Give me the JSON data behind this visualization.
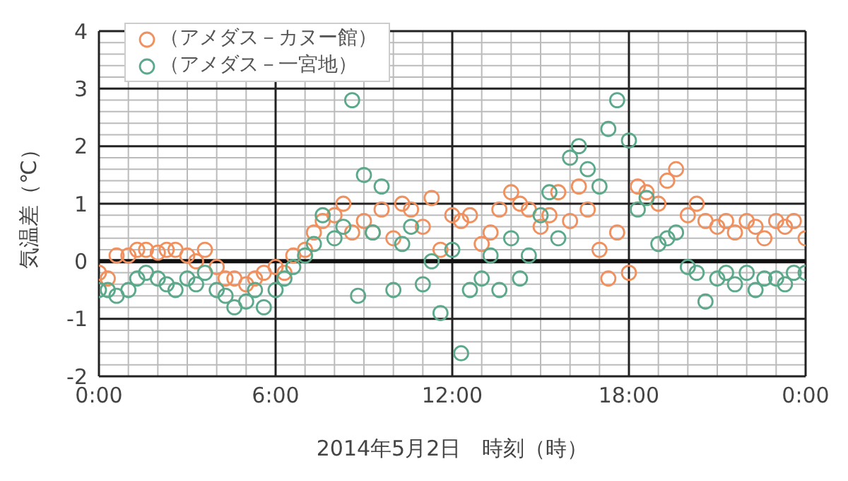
{
  "chart_data": {
    "type": "scatter",
    "xlabel": "2014年5月2日　時刻（時）",
    "ylabel": "気温差（℃）",
    "xlim": [
      0,
      24
    ],
    "xticks": [
      {
        "value": 0,
        "label": "0:00"
      },
      {
        "value": 6,
        "label": "6:00"
      },
      {
        "value": 12,
        "label": "12:00"
      },
      {
        "value": 18,
        "label": "18:00"
      },
      {
        "value": 24,
        "label": "0:00"
      }
    ],
    "ylim": [
      -2,
      4
    ],
    "yticks": [
      -2,
      -1,
      0,
      1,
      2,
      3,
      4
    ],
    "grid": true,
    "legend": "top left",
    "marker": "circle",
    "series": [
      {
        "name": "（アメダス－カヌー館）",
        "color": "#f0905e",
        "x": [
          0,
          0.3,
          0.6,
          1,
          1.3,
          1.6,
          2,
          2.3,
          2.6,
          3,
          3.3,
          3.6,
          4,
          4.3,
          4.6,
          5,
          5.3,
          5.6,
          6,
          6.3,
          6.6,
          7,
          7.3,
          7.6,
          8,
          8.3,
          8.6,
          9,
          9.3,
          9.6,
          10,
          10.3,
          10.6,
          11,
          11.3,
          11.6,
          12,
          12.3,
          12.6,
          13,
          13.3,
          13.6,
          14,
          14.3,
          14.6,
          15,
          15.3,
          15.6,
          16,
          16.3,
          16.6,
          17,
          17.3,
          17.6,
          18,
          18.3,
          18.6,
          19,
          19.3,
          19.6,
          20,
          20.3,
          20.6,
          21,
          21.3,
          21.6,
          22,
          22.3,
          22.6,
          23,
          23.3,
          23.6,
          24
        ],
        "values": [
          -0.2,
          -0.3,
          0.1,
          0.1,
          0.2,
          0.2,
          0.15,
          0.2,
          0.2,
          0.1,
          0,
          0.2,
          -0.1,
          -0.3,
          -0.3,
          -0.4,
          -0.3,
          -0.2,
          -0.1,
          -0.2,
          0.1,
          0.2,
          0.5,
          0.7,
          0.8,
          1,
          0.5,
          0.7,
          0.5,
          0.9,
          0.4,
          1,
          0.9,
          0.6,
          1.1,
          0.2,
          0.8,
          0.7,
          0.8,
          0.3,
          0.5,
          0.9,
          1.2,
          1,
          0.9,
          0.6,
          0.8,
          1.2,
          0.7,
          1.3,
          0.9,
          0.2,
          -0.3,
          0.5,
          -0.2,
          1.3,
          1.2,
          1,
          1.4,
          1.6,
          0.8,
          1,
          0.7,
          0.6,
          0.7,
          0.5,
          0.7,
          0.6,
          0.4,
          0.7,
          0.6,
          0.7,
          0.4
        ]
      },
      {
        "name": "（アメダス－一宮地）",
        "color": "#5ca88a",
        "x": [
          0,
          0.3,
          0.6,
          1,
          1.3,
          1.6,
          2,
          2.3,
          2.6,
          3,
          3.3,
          3.6,
          4,
          4.3,
          4.6,
          5,
          5.3,
          5.6,
          6,
          6.3,
          6.6,
          7,
          7.3,
          7.6,
          8,
          8.3,
          8.6,
          8.8,
          9,
          9.3,
          9.6,
          10,
          10.3,
          10.6,
          11,
          11.3,
          11.6,
          12,
          12.3,
          12.6,
          13,
          13.3,
          13.6,
          14,
          14.3,
          14.6,
          15,
          15.3,
          15.6,
          16,
          16.3,
          16.6,
          17,
          17.3,
          17.6,
          18,
          18.3,
          18.6,
          19,
          19.3,
          19.6,
          20,
          20.3,
          20.6,
          21,
          21.3,
          21.6,
          22,
          22.3,
          22.6,
          23,
          23.3,
          23.6,
          24
        ],
        "values": [
          -0.5,
          -0.5,
          -0.6,
          -0.5,
          -0.3,
          -0.2,
          -0.3,
          -0.4,
          -0.5,
          -0.3,
          -0.4,
          -0.2,
          -0.5,
          -0.6,
          -0.8,
          -0.7,
          -0.5,
          -0.8,
          -0.5,
          -0.3,
          -0.1,
          0.1,
          0.3,
          0.8,
          0.4,
          0.6,
          2.8,
          -0.6,
          1.5,
          0.5,
          1.3,
          -0.5,
          0.3,
          0.6,
          -0.4,
          0,
          -0.9,
          0.2,
          -1.6,
          -0.5,
          -0.3,
          0.1,
          -0.5,
          0.4,
          -0.3,
          0.1,
          0.8,
          1.2,
          0.4,
          1.8,
          2,
          1.6,
          1.3,
          2.3,
          2.8,
          2.1,
          0.9,
          1.1,
          0.3,
          0.4,
          0.5,
          -0.1,
          -0.2,
          -0.7,
          -0.3,
          -0.2,
          -0.4,
          -0.2,
          -0.5,
          -0.3,
          -0.3,
          -0.4,
          -0.2,
          -0.2
        ]
      }
    ]
  }
}
